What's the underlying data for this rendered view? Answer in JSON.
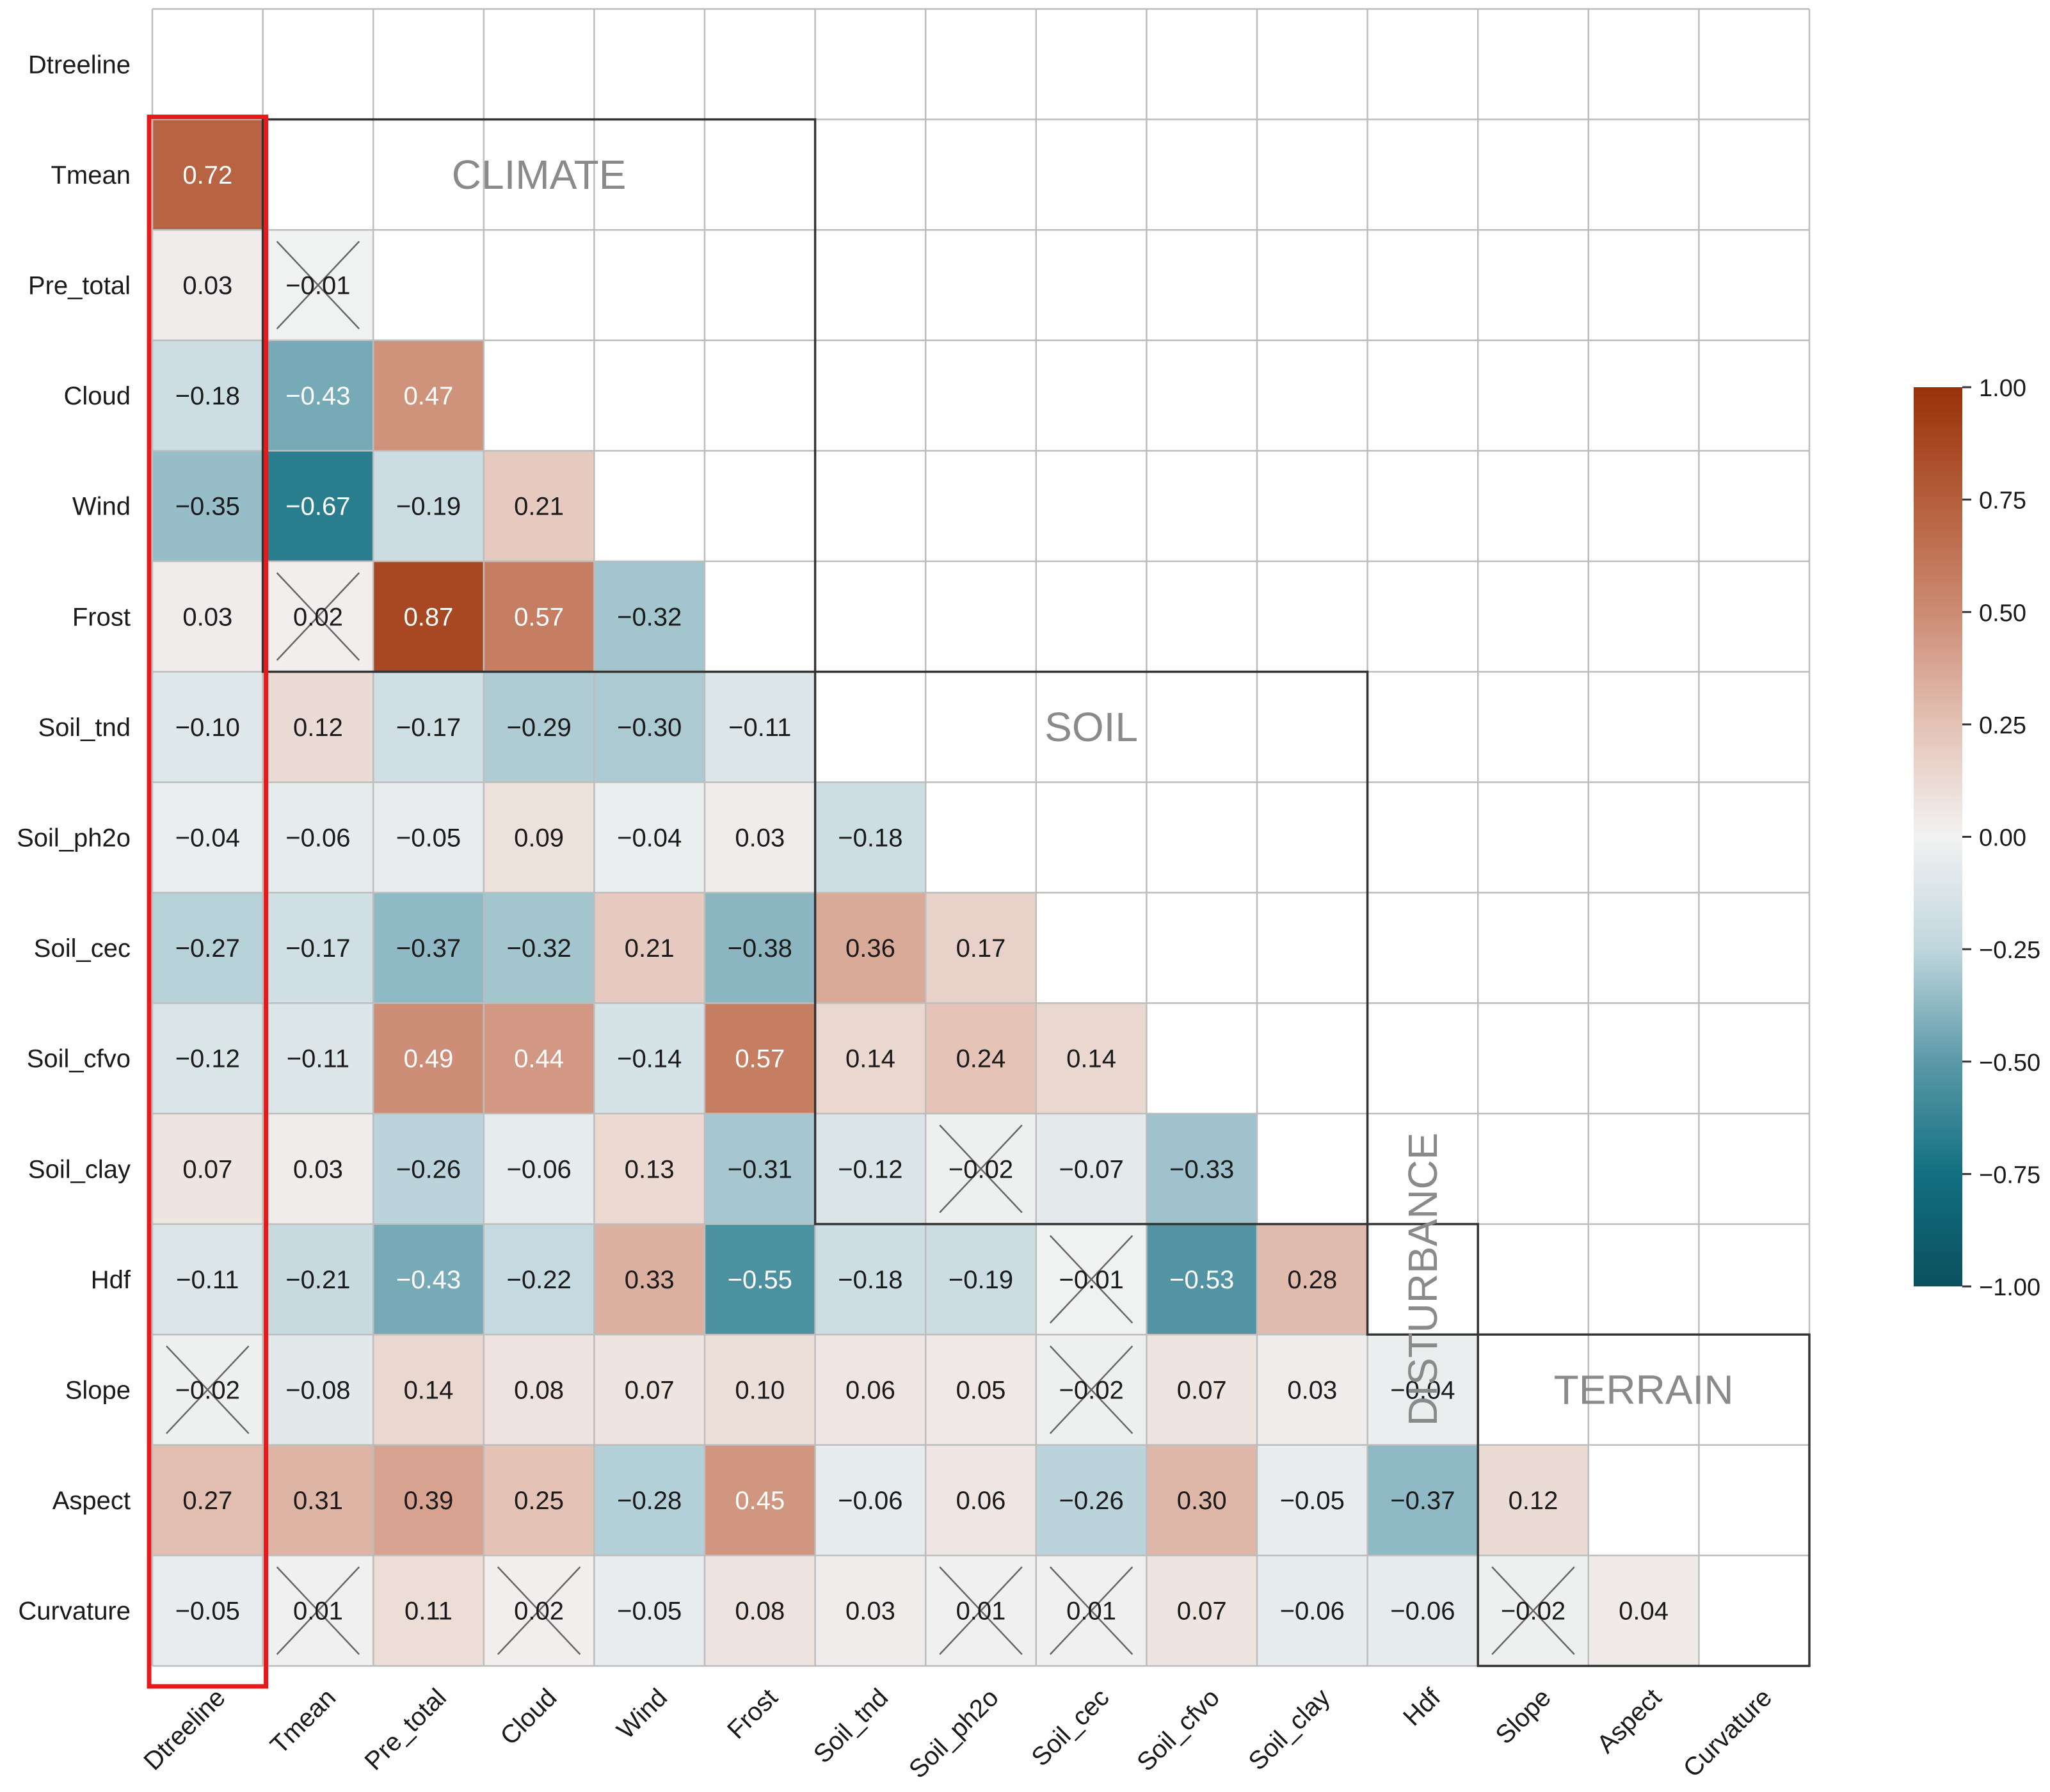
{
  "chart_data": {
    "type": "heatmap",
    "title": "",
    "xlabel": "",
    "ylabel": "",
    "variables": [
      "Dtreeline",
      "Tmean",
      "Pre_total",
      "Cloud",
      "Wind",
      "Frost",
      "Soil_tnd",
      "Soil_ph2o",
      "Soil_cec",
      "Soil_cfvo",
      "Soil_clay",
      "Hdf",
      "Slope",
      "Aspect",
      "Curvature"
    ],
    "rows": [
      [],
      [
        0.72
      ],
      [
        0.03,
        -0.01
      ],
      [
        -0.18,
        -0.43,
        0.47
      ],
      [
        -0.35,
        -0.67,
        -0.19,
        0.21
      ],
      [
        0.03,
        0.02,
        0.87,
        0.57,
        -0.32
      ],
      [
        -0.1,
        0.12,
        -0.17,
        -0.29,
        -0.3,
        -0.11
      ],
      [
        -0.04,
        -0.06,
        -0.05,
        0.09,
        -0.04,
        0.03,
        -0.18
      ],
      [
        -0.27,
        -0.17,
        -0.37,
        -0.32,
        0.21,
        -0.38,
        0.36,
        0.17
      ],
      [
        -0.12,
        -0.11,
        0.49,
        0.44,
        -0.14,
        0.57,
        0.14,
        0.24,
        0.14
      ],
      [
        0.07,
        0.03,
        -0.26,
        -0.06,
        0.13,
        -0.31,
        -0.12,
        -0.02,
        -0.07,
        -0.33
      ],
      [
        -0.11,
        -0.21,
        -0.43,
        -0.22,
        0.33,
        -0.55,
        -0.18,
        -0.19,
        -0.01,
        -0.53,
        0.28
      ],
      [
        -0.02,
        -0.08,
        0.14,
        0.08,
        0.07,
        0.1,
        0.06,
        0.05,
        -0.02,
        0.07,
        0.03,
        -0.04
      ],
      [
        0.27,
        0.31,
        0.39,
        0.25,
        -0.28,
        0.45,
        -0.06,
        0.06,
        -0.26,
        0.3,
        -0.05,
        -0.37,
        0.12
      ],
      [
        -0.05,
        0.01,
        0.11,
        0.02,
        -0.05,
        0.08,
        0.03,
        0.01,
        0.01,
        0.07,
        -0.06,
        -0.06,
        -0.02,
        0.04
      ]
    ],
    "crossed_cells": [
      [
        2,
        1
      ],
      [
        5,
        1
      ],
      [
        10,
        7
      ],
      [
        11,
        8
      ],
      [
        12,
        0
      ],
      [
        12,
        8
      ],
      [
        14,
        1
      ],
      [
        14,
        3
      ],
      [
        14,
        7
      ],
      [
        14,
        8
      ],
      [
        14,
        12
      ]
    ],
    "highlighted_column": "Dtreeline",
    "highlight_color": "#e8191b",
    "groups": [
      {
        "label": "CLIMATE",
        "orientation": "horizontal"
      },
      {
        "label": "SOIL",
        "orientation": "horizontal"
      },
      {
        "label": "DISTURBANCE",
        "orientation": "vertical"
      },
      {
        "label": "TERRAIN",
        "orientation": "horizontal"
      }
    ],
    "colorbar": {
      "range": [
        -1.0,
        1.0
      ],
      "ticks": [
        "1.00",
        "0.75",
        "0.50",
        "0.25",
        "0.00",
        "−0.25",
        "−0.50",
        "−0.75",
        "−1.00"
      ],
      "colors": {
        "max": "#983108",
        "mid": "#f2f2f2",
        "min": "#0b4f5f"
      }
    },
    "grid": true,
    "legend_position": "right"
  }
}
